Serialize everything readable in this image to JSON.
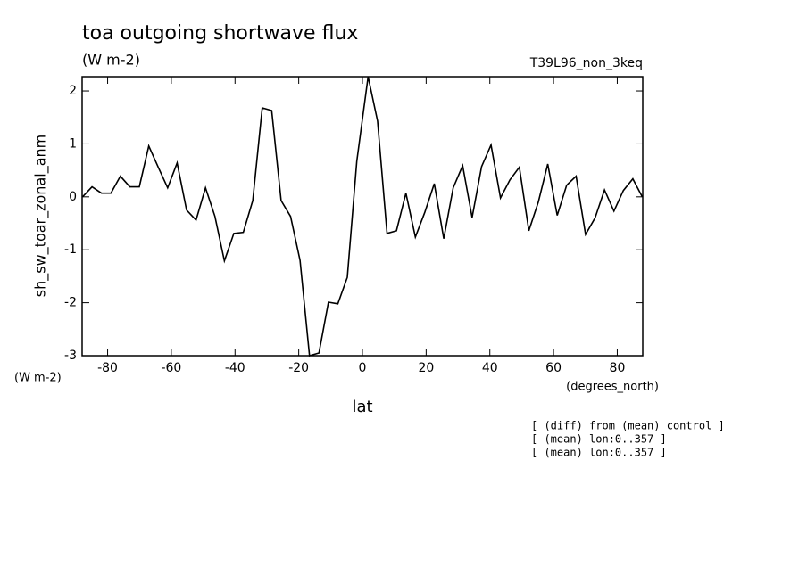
{
  "chart_data": {
    "type": "line",
    "title": "toa outgoing shortwave flux",
    "subtitle": "(W m-2)",
    "run_label": "T39L96_non_3keq",
    "y_label": "sh_sw_toar_zonal_anm",
    "y_units": "(W m-2)",
    "x_label": "lat",
    "x_units": "(degrees_north)",
    "notes": [
      "[ (diff) from (mean) control ]",
      "[ (mean) lon:0..357 ]",
      "[ (mean) lon:0..357 ]"
    ],
    "xlim": [
      -88,
      88
    ],
    "xticks": [
      -80,
      -60,
      -40,
      -20,
      0,
      20,
      40,
      60,
      80
    ],
    "ylim": [
      -3,
      2.27
    ],
    "yticks": [
      -3,
      -2,
      -1,
      0,
      1,
      2
    ],
    "color": "#000000",
    "x": [
      -87.86,
      -84.89,
      -81.92,
      -78.96,
      -75.99,
      -73.02,
      -70.05,
      -67.08,
      -64.11,
      -61.15,
      -58.18,
      -55.21,
      -52.24,
      -49.27,
      -46.3,
      -43.34,
      -40.37,
      -37.4,
      -34.43,
      -31.46,
      -28.49,
      -25.53,
      -22.56,
      -19.59,
      -16.62,
      -13.65,
      -10.68,
      -7.72,
      -4.75,
      -1.78,
      1.78,
      4.75,
      7.72,
      10.68,
      13.65,
      16.62,
      19.59,
      22.56,
      25.53,
      28.49,
      31.46,
      34.43,
      37.4,
      40.37,
      43.34,
      46.3,
      49.27,
      52.24,
      55.21,
      58.18,
      61.15,
      64.11,
      67.08,
      70.05,
      73.02,
      75.99,
      78.96,
      81.92,
      84.89,
      87.86
    ],
    "values": [
      0,
      0.19,
      0.07,
      0.07,
      0.39,
      0.19,
      0.19,
      0.96,
      0.56,
      0.17,
      0.64,
      -0.25,
      -0.44,
      0.17,
      -0.37,
      -1.21,
      -0.69,
      -0.67,
      -0.07,
      1.68,
      1.63,
      -0.07,
      -0.37,
      -1.2,
      -3.0,
      -2.95,
      -1.99,
      -2.02,
      -1.52,
      0.67,
      2.27,
      1.43,
      -0.69,
      -0.64,
      0.07,
      -0.76,
      -0.29,
      0.25,
      -0.79,
      0.17,
      0.59,
      -0.39,
      0.57,
      0.98,
      -0.02,
      0.32,
      0.56,
      -0.64,
      -0.1,
      0.62,
      -0.35,
      0.22,
      0.39,
      -0.71,
      -0.4,
      0.13,
      -0.27,
      0.12,
      0.34,
      0
    ]
  }
}
